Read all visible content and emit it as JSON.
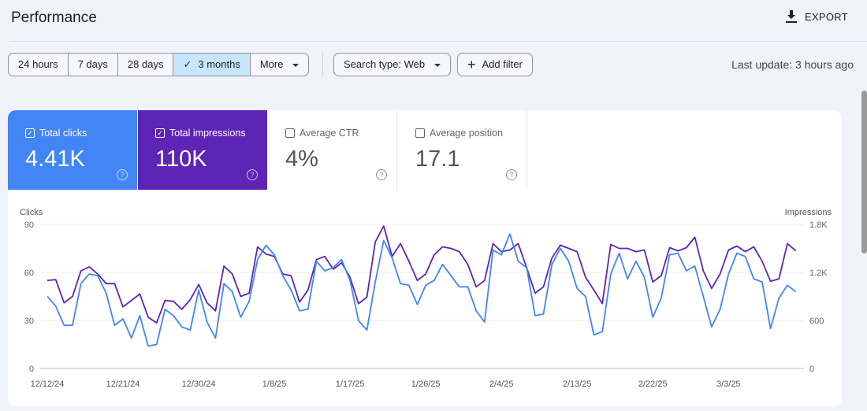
{
  "header": {
    "title": "Performance",
    "export_label": "EXPORT",
    "export_icon": "download-icon"
  },
  "toolbar": {
    "ranges": [
      {
        "label": "24 hours"
      },
      {
        "label": "7 days"
      },
      {
        "label": "28 days"
      },
      {
        "label": "3 months",
        "selected": true
      },
      {
        "label": "More"
      }
    ],
    "search_type": "Search type: Web",
    "add_filter": "Add filter",
    "last_update": "Last update: 3 hours ago"
  },
  "metrics": [
    {
      "label": "Total clicks",
      "value": "4.41K",
      "checked": true,
      "color": "#4285f4"
    },
    {
      "label": "Total impressions",
      "value": "110K",
      "checked": true,
      "color": "#5e24b5"
    },
    {
      "label": "Average CTR",
      "value": "4%",
      "checked": false
    },
    {
      "label": "Average position",
      "value": "17.1",
      "checked": false
    }
  ],
  "chart_data": {
    "type": "line",
    "y_left_label": "Clicks",
    "y_right_label": "Impressions",
    "y_left_ticks": [
      "0",
      "30",
      "60",
      "90"
    ],
    "y_left_range": [
      0,
      90
    ],
    "y_right_ticks": [
      "0",
      "600",
      "1.2K",
      "1.8K"
    ],
    "y_right_range": [
      0,
      1800
    ],
    "x_ticks": [
      "12/12/24",
      "12/21/24",
      "12/30/24",
      "1/8/25",
      "1/17/25",
      "1/26/25",
      "2/4/25",
      "2/13/25",
      "2/22/25",
      "3/3/25"
    ],
    "grid": true,
    "x": [
      "12/12/24",
      "12/13/24",
      "12/14/24",
      "12/15/24",
      "12/16/24",
      "12/17/24",
      "12/18/24",
      "12/19/24",
      "12/20/24",
      "12/21/24",
      "12/22/24",
      "12/23/24",
      "12/24/24",
      "12/25/24",
      "12/26/24",
      "12/27/24",
      "12/28/24",
      "12/29/24",
      "12/30/24",
      "12/31/24",
      "1/1/25",
      "1/2/25",
      "1/3/25",
      "1/4/25",
      "1/5/25",
      "1/6/25",
      "1/7/25",
      "1/8/25",
      "1/9/25",
      "1/10/25",
      "1/11/25",
      "1/12/25",
      "1/13/25",
      "1/14/25",
      "1/15/25",
      "1/16/25",
      "1/17/25",
      "1/18/25",
      "1/19/25",
      "1/20/25",
      "1/21/25",
      "1/22/25",
      "1/23/25",
      "1/24/25",
      "1/25/25",
      "1/26/25",
      "1/27/25",
      "1/28/25",
      "1/29/25",
      "1/30/25",
      "1/31/25",
      "2/1/25",
      "2/2/25",
      "2/3/25",
      "2/4/25",
      "2/5/25",
      "2/6/25",
      "2/7/25",
      "2/8/25",
      "2/9/25",
      "2/10/25",
      "2/11/25",
      "2/12/25",
      "2/13/25",
      "2/14/25",
      "2/15/25",
      "2/16/25",
      "2/17/25",
      "2/18/25",
      "2/19/25",
      "2/20/25",
      "2/21/25",
      "2/22/25",
      "2/23/25",
      "2/24/25",
      "2/25/25",
      "2/26/25",
      "2/27/25",
      "2/28/25",
      "3/1/25",
      "3/2/25",
      "3/3/25",
      "3/4/25",
      "3/5/25",
      "3/6/25",
      "3/7/25",
      "3/8/25",
      "3/9/25",
      "3/10/25",
      "3/11/25"
    ],
    "series": [
      {
        "name": "Total clicks",
        "axis": "left",
        "color": "#4285f4",
        "values": [
          45,
          39,
          27,
          27,
          53,
          59,
          58,
          47,
          27,
          31,
          19,
          33,
          14,
          15,
          37,
          33,
          26,
          24,
          49,
          29,
          19,
          53,
          48,
          32,
          42,
          68,
          77,
          71,
          58,
          49,
          36,
          37,
          67,
          61,
          63,
          68,
          55,
          30,
          24,
          54,
          80,
          69,
          53,
          52,
          40,
          52,
          55,
          65,
          58,
          51,
          51,
          36,
          29,
          74,
          71,
          84,
          67,
          63,
          33,
          34,
          65,
          75,
          67,
          50,
          45,
          21,
          23,
          59,
          72,
          56,
          67,
          57,
          32,
          44,
          71,
          72,
          61,
          64,
          45,
          26,
          37,
          59,
          72,
          70,
          56,
          54,
          25,
          44,
          52,
          48
        ]
      },
      {
        "name": "Total impressions",
        "axis": "right",
        "color": "#5e24b5",
        "values": [
          1100,
          1110,
          820,
          900,
          1220,
          1270,
          1180,
          1060,
          1060,
          770,
          850,
          930,
          640,
          570,
          850,
          840,
          740,
          860,
          1050,
          820,
          720,
          1280,
          1180,
          900,
          940,
          1520,
          1430,
          1400,
          1180,
          1160,
          830,
          980,
          1360,
          1400,
          1240,
          1320,
          1140,
          810,
          890,
          1580,
          1780,
          1400,
          1560,
          1340,
          1100,
          1180,
          1420,
          1520,
          1500,
          1460,
          1300,
          1020,
          1100,
          1560,
          1460,
          1480,
          1560,
          1260,
          940,
          1020,
          1380,
          1540,
          1500,
          1460,
          1140,
          980,
          810,
          1550,
          1500,
          1500,
          1460,
          1480,
          1080,
          1160,
          1510,
          1470,
          1510,
          1640,
          1220,
          1000,
          1180,
          1480,
          1530,
          1460,
          1520,
          1340,
          1090,
          1120,
          1560,
          1470
        ]
      }
    ]
  }
}
